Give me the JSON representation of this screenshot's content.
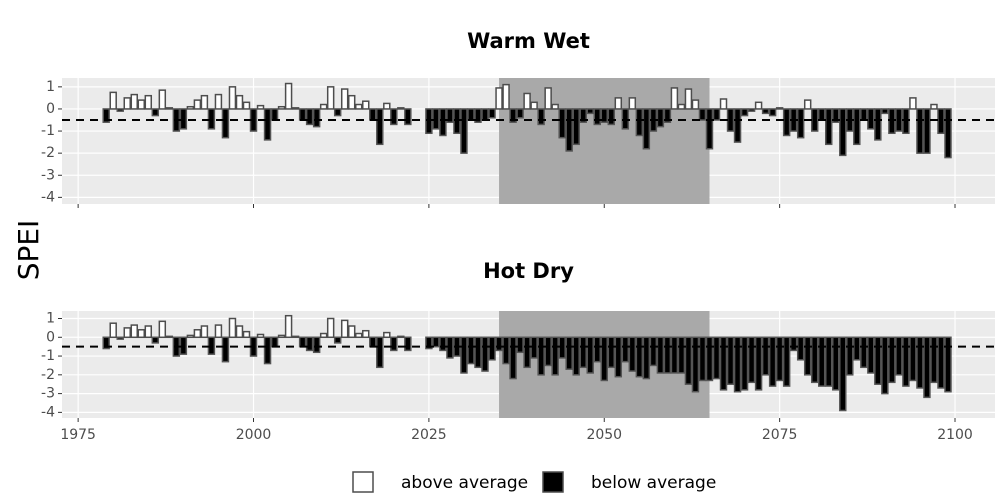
{
  "ylabel": "SPEI",
  "legend": [
    {
      "name": "above average",
      "color": "#ffffff"
    },
    {
      "name": "below average",
      "color": "#000000"
    }
  ],
  "chart_data": [
    {
      "type": "bar",
      "title": "Warm Wet",
      "x": [
        1979,
        1980,
        1981,
        1982,
        1983,
        1984,
        1985,
        1986,
        1987,
        1988,
        1989,
        1990,
        1991,
        1992,
        1993,
        1994,
        1995,
        1996,
        1997,
        1998,
        1999,
        2000,
        2001,
        2002,
        2003,
        2004,
        2005,
        2006,
        2007,
        2008,
        2009,
        2010,
        2011,
        2012,
        2013,
        2014,
        2015,
        2016,
        2017,
        2018,
        2019,
        2020,
        2021,
        2022,
        2025,
        2026,
        2027,
        2028,
        2029,
        2030,
        2031,
        2032,
        2033,
        2034,
        2035,
        2036,
        2037,
        2038,
        2039,
        2040,
        2041,
        2042,
        2043,
        2044,
        2045,
        2046,
        2047,
        2048,
        2049,
        2050,
        2051,
        2052,
        2053,
        2054,
        2055,
        2056,
        2057,
        2058,
        2059,
        2060,
        2061,
        2062,
        2063,
        2064,
        2065,
        2066,
        2067,
        2068,
        2069,
        2070,
        2071,
        2072,
        2073,
        2074,
        2075,
        2076,
        2077,
        2078,
        2079,
        2080,
        2081,
        2082,
        2083,
        2084,
        2085,
        2086,
        2087,
        2088,
        2089,
        2090,
        2091,
        2092,
        2093,
        2094,
        2095,
        2096,
        2097,
        2098,
        2099
      ],
      "values": [
        -0.6,
        0.75,
        -0.1,
        0.5,
        0.65,
        0.4,
        0.6,
        -0.3,
        0.85,
        0.05,
        -1.0,
        -0.9,
        0.1,
        0.4,
        0.6,
        -0.9,
        0.65,
        -1.3,
        1.0,
        0.6,
        0.3,
        -1.0,
        0.15,
        -1.4,
        -0.5,
        0.1,
        1.15,
        0.05,
        -0.5,
        -0.7,
        -0.8,
        0.2,
        1.0,
        -0.3,
        0.9,
        0.6,
        0.2,
        0.35,
        -0.5,
        -1.6,
        0.25,
        -0.7,
        0.05,
        -0.7,
        -1.1,
        -0.9,
        -1.2,
        -0.6,
        -1.1,
        -2.0,
        -0.5,
        -0.6,
        -0.5,
        -0.4,
        0.95,
        1.1,
        -0.6,
        -0.4,
        0.7,
        0.3,
        -0.7,
        0.95,
        0.2,
        -1.3,
        -1.9,
        -1.6,
        -0.6,
        -0.2,
        -0.7,
        -0.6,
        -0.7,
        0.5,
        -0.9,
        0.5,
        -1.2,
        -1.8,
        -1.0,
        -0.8,
        -0.6,
        0.95,
        0.2,
        0.9,
        0.4,
        -0.5,
        -1.8,
        -0.5,
        0.45,
        -1.0,
        -1.5,
        -0.3,
        -0.1,
        0.3,
        -0.2,
        -0.3,
        0.05,
        -1.2,
        -1.0,
        -1.3,
        0.4,
        -1.0,
        -0.5,
        -1.6,
        -0.6,
        -2.1,
        -1.0,
        -1.6,
        -0.5,
        -0.9,
        -1.4,
        -0.2,
        -1.1,
        -1.0,
        -1.1,
        0.5,
        -2.0,
        -2.0,
        0.2,
        -1.1,
        -2.2
      ],
      "xlim": [
        1972.7,
        2105.7
      ],
      "xticks": [
        1975,
        2000,
        2025,
        2050,
        2075,
        2100
      ],
      "show_xtick_labels": false,
      "ylim": [
        -4.3,
        1.4
      ],
      "yticks": [
        -4,
        -3,
        -2,
        -1,
        0,
        1
      ],
      "threshold": -0.5,
      "shaded_range": [
        2035,
        2065
      ],
      "grid": true
    },
    {
      "type": "bar",
      "title": "Hot Dry",
      "x": [
        1979,
        1980,
        1981,
        1982,
        1983,
        1984,
        1985,
        1986,
        1987,
        1988,
        1989,
        1990,
        1991,
        1992,
        1993,
        1994,
        1995,
        1996,
        1997,
        1998,
        1999,
        2000,
        2001,
        2002,
        2003,
        2004,
        2005,
        2006,
        2007,
        2008,
        2009,
        2010,
        2011,
        2012,
        2013,
        2014,
        2015,
        2016,
        2017,
        2018,
        2019,
        2020,
        2021,
        2022,
        2025,
        2026,
        2027,
        2028,
        2029,
        2030,
        2031,
        2032,
        2033,
        2034,
        2035,
        2036,
        2037,
        2038,
        2039,
        2040,
        2041,
        2042,
        2043,
        2044,
        2045,
        2046,
        2047,
        2048,
        2049,
        2050,
        2051,
        2052,
        2053,
        2054,
        2055,
        2056,
        2057,
        2058,
        2059,
        2060,
        2061,
        2062,
        2063,
        2064,
        2065,
        2066,
        2067,
        2068,
        2069,
        2070,
        2071,
        2072,
        2073,
        2074,
        2075,
        2076,
        2077,
        2078,
        2079,
        2080,
        2081,
        2082,
        2083,
        2084,
        2085,
        2086,
        2087,
        2088,
        2089,
        2090,
        2091,
        2092,
        2093,
        2094,
        2095,
        2096,
        2097,
        2098,
        2099
      ],
      "values": [
        -0.6,
        0.75,
        -0.1,
        0.5,
        0.65,
        0.4,
        0.6,
        -0.3,
        0.85,
        0.05,
        -1.0,
        -0.9,
        0.1,
        0.4,
        0.6,
        -0.9,
        0.65,
        -1.3,
        1.0,
        0.6,
        0.3,
        -1.0,
        0.15,
        -1.4,
        -0.5,
        0.1,
        1.15,
        0.05,
        -0.5,
        -0.7,
        -0.8,
        0.2,
        1.0,
        -0.3,
        0.9,
        0.6,
        0.2,
        0.35,
        -0.5,
        -1.6,
        0.25,
        -0.7,
        0.05,
        -0.7,
        -0.6,
        -0.5,
        -0.7,
        -1.1,
        -1.0,
        -1.9,
        -1.4,
        -1.6,
        -1.8,
        -1.2,
        -0.7,
        -1.4,
        -2.2,
        -0.8,
        -1.6,
        -1.1,
        -2.0,
        -1.5,
        -2.0,
        -1.1,
        -1.7,
        -2.0,
        -1.6,
        -1.9,
        -1.3,
        -2.3,
        -1.6,
        -2.1,
        -1.3,
        -1.8,
        -2.1,
        -2.2,
        -1.5,
        -1.9,
        -1.9,
        -1.9,
        -1.9,
        -2.5,
        -2.9,
        -2.3,
        -2.3,
        -2.2,
        -2.8,
        -2.5,
        -2.9,
        -2.8,
        -2.4,
        -2.8,
        -2.0,
        -2.6,
        -2.3,
        -2.6,
        -0.7,
        -1.2,
        -2.0,
        -2.4,
        -2.6,
        -2.6,
        -2.8,
        -3.9,
        -2.0,
        -1.2,
        -1.6,
        -1.9,
        -2.5,
        -3.0,
        -2.4,
        -2.0,
        -2.6,
        -2.3,
        -2.7,
        -3.2,
        -2.4,
        -2.7,
        -2.9
      ],
      "xlim": [
        1972.7,
        2105.7
      ],
      "xticks": [
        1975,
        2000,
        2025,
        2050,
        2075,
        2100
      ],
      "show_xtick_labels": true,
      "ylim": [
        -4.3,
        1.4
      ],
      "yticks": [
        -4,
        -3,
        -2,
        -1,
        0,
        1
      ],
      "threshold": -0.5,
      "shaded_range": [
        2035,
        2065
      ],
      "grid": true
    }
  ]
}
